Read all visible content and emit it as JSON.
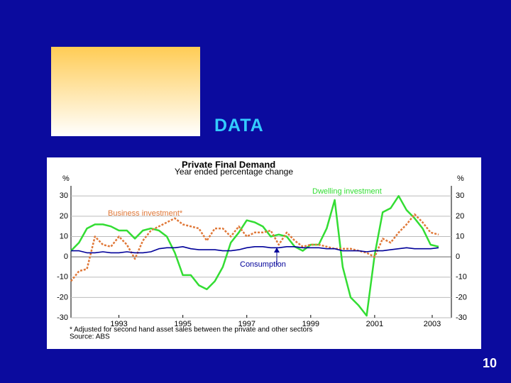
{
  "slide": {
    "heading": "DATA",
    "page_number": "10"
  },
  "chart_data": {
    "type": "line",
    "title": "Private Final Demand",
    "subtitle": "Year ended percentage change",
    "y_label": "%",
    "footnote": "* Adjusted for second hand asset sales between the private and other sectors",
    "source": "Source: ABS",
    "x": [
      1992,
      1992.25,
      1992.5,
      1992.75,
      1993,
      1993.25,
      1993.5,
      1993.75,
      1994,
      1994.25,
      1994.5,
      1994.75,
      1995,
      1995.25,
      1995.5,
      1995.75,
      1996,
      1996.25,
      1996.5,
      1996.75,
      1997,
      1997.25,
      1997.5,
      1997.75,
      1998,
      1998.25,
      1998.5,
      1998.75,
      1999,
      1999.25,
      1999.5,
      1999.75,
      2000,
      2000.25,
      2000.5,
      2000.75,
      2001,
      2001.25,
      2001.5,
      2001.75,
      2002,
      2002.25,
      2002.5,
      2002.75,
      2003,
      2003.25,
      2003.5
    ],
    "series": [
      {
        "name": "Dwelling investment",
        "color": "#33dd33",
        "style": "solid",
        "values": [
          3,
          7,
          14,
          16,
          16,
          15,
          13,
          13,
          9,
          13,
          14,
          13,
          10,
          2,
          -9,
          -9,
          -14,
          -16,
          -12,
          -5,
          7,
          12,
          18,
          17,
          15,
          10,
          11,
          10,
          5,
          3,
          6,
          6,
          14,
          28,
          -5,
          -20,
          -24,
          -29,
          1,
          22,
          24,
          30,
          23,
          19,
          14,
          6,
          5
        ]
      },
      {
        "name": "Business investment*",
        "color": "#e07838",
        "style": "dashed",
        "values": [
          -12,
          -7,
          -6,
          10,
          6,
          5,
          10,
          6,
          -1,
          8,
          13,
          15,
          17,
          19,
          16,
          15,
          14,
          8,
          14,
          14,
          10,
          15,
          10,
          12,
          12,
          13,
          6,
          12,
          8,
          5,
          6,
          6,
          5,
          4,
          4,
          4,
          3,
          2,
          0,
          9,
          7,
          12,
          16,
          21,
          17,
          12,
          11
        ]
      },
      {
        "name": "Consumption",
        "color": "#000099",
        "style": "solid",
        "values": [
          3,
          3,
          2,
          2,
          2.5,
          2,
          2,
          2.5,
          2,
          2,
          2.5,
          4,
          4.5,
          4.5,
          5,
          4,
          3.5,
          3.5,
          3.5,
          3,
          3,
          3.5,
          4.5,
          5,
          5,
          4.5,
          4.5,
          5,
          5,
          4.5,
          4.5,
          4.5,
          4,
          4,
          3,
          3,
          3,
          2.5,
          3,
          3,
          3.5,
          4,
          4.5,
          4,
          4,
          4,
          4.5
        ]
      }
    ],
    "xlim": [
      1992,
      2003.9
    ],
    "xticks": [
      {
        "value": 1993.5,
        "label": "1993"
      },
      {
        "value": 1995.5,
        "label": "1995"
      },
      {
        "value": 1997.5,
        "label": "1997"
      },
      {
        "value": 1999.5,
        "label": "1999"
      },
      {
        "value": 2001.5,
        "label": "2001"
      },
      {
        "value": 2003.3,
        "label": "2003"
      }
    ],
    "ylim": [
      -30,
      35
    ],
    "yticks": [
      30,
      20,
      10,
      0,
      -10,
      -20,
      -30
    ],
    "grid": true
  }
}
